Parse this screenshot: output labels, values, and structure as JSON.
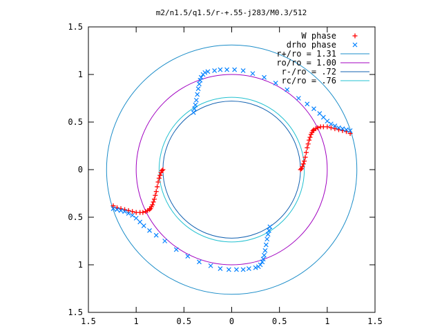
{
  "chart_data": {
    "type": "scatter",
    "title": "m2/n1.5/q1.5/r-+.55-j283/M0.3/512",
    "xlabel": "",
    "ylabel": "",
    "xlim": [
      -1.5,
      1.5
    ],
    "ylim": [
      -1.5,
      1.5
    ],
    "x_ticks": [
      -1.5,
      -1,
      -0.5,
      0,
      0.5,
      1,
      1.5
    ],
    "y_ticks": [
      -1.5,
      -1,
      -0.5,
      0,
      0.5,
      1,
      1.5
    ],
    "x_tick_labels": [
      "1.5",
      "1",
      "0.5",
      "0",
      "0.5",
      "1",
      "1.5"
    ],
    "y_tick_labels": [
      "1.5",
      "1",
      "0.5",
      "0",
      "0.5",
      "1",
      "1.5"
    ],
    "grid": false,
    "legend_position": "top-right",
    "colors": {
      "w_phase": "#ff0000",
      "drho_phase": "#0080ff",
      "r_plus": "#1a8cc8",
      "r_o": "#a000c0",
      "r_minus": "#1060b0",
      "r_c": "#20c0d0"
    },
    "legend": [
      {
        "label": "W phase",
        "marker": "+",
        "color": "#ff0000"
      },
      {
        "label": "drho phase",
        "marker": "x",
        "color": "#0080ff"
      },
      {
        "label": "r+/ro = 1.31",
        "marker": "line",
        "color": "#1a8cc8"
      },
      {
        "label": "ro/ro = 1.00",
        "marker": "line",
        "color": "#a000c0"
      },
      {
        "label": "r-/ro = .72",
        "marker": "line",
        "color": "#1060b0"
      },
      {
        "label": "rc/ro = .76",
        "marker": "line",
        "color": "#20c0d0"
      }
    ],
    "circles": [
      {
        "name": "r+/ro",
        "r": 1.31,
        "color": "#1a8cc8"
      },
      {
        "name": "ro/ro",
        "r": 1.0,
        "color": "#a000c0"
      },
      {
        "name": "r-/ro",
        "r": 0.72,
        "color": "#1060b0"
      },
      {
        "name": "rc/ro",
        "r": 0.76,
        "color": "#20c0d0"
      }
    ],
    "series": [
      {
        "name": "W phase",
        "marker": "+",
        "color": "#ff0000",
        "x": [
          0.72,
          0.73,
          0.74,
          0.75,
          0.76,
          0.77,
          0.78,
          0.79,
          0.8,
          0.81,
          0.82,
          0.83,
          0.84,
          0.85,
          0.86,
          0.88,
          0.9,
          0.93,
          0.96,
          1.0,
          1.04,
          1.08,
          1.12,
          1.16,
          1.2,
          1.24,
          -0.72,
          -0.73,
          -0.74,
          -0.75,
          -0.76,
          -0.77,
          -0.78,
          -0.79,
          -0.8,
          -0.81,
          -0.82,
          -0.83,
          -0.84,
          -0.85,
          -0.86,
          -0.88,
          -0.9,
          -0.93,
          -0.96,
          -1.0,
          -1.04,
          -1.08,
          -1.12,
          -1.16,
          -1.2,
          -1.24
        ],
        "y": [
          0.0,
          0.01,
          0.03,
          0.06,
          0.09,
          0.13,
          0.18,
          0.23,
          0.27,
          0.31,
          0.34,
          0.37,
          0.39,
          0.41,
          0.42,
          0.43,
          0.44,
          0.45,
          0.45,
          0.45,
          0.44,
          0.43,
          0.42,
          0.41,
          0.4,
          0.38,
          0.0,
          -0.01,
          -0.03,
          -0.06,
          -0.09,
          -0.13,
          -0.18,
          -0.23,
          -0.27,
          -0.31,
          -0.34,
          -0.37,
          -0.39,
          -0.41,
          -0.42,
          -0.43,
          -0.44,
          -0.45,
          -0.45,
          -0.45,
          -0.44,
          -0.43,
          -0.42,
          -0.41,
          -0.4,
          -0.38
        ]
      },
      {
        "name": "drho phase",
        "marker": "x",
        "color": "#0080ff",
        "x": [
          -0.4,
          -0.39,
          -0.38,
          -0.37,
          -0.36,
          -0.35,
          -0.34,
          -0.33,
          -0.32,
          -0.3,
          -0.28,
          -0.25,
          -0.18,
          -0.12,
          -0.05,
          0.03,
          0.12,
          0.22,
          0.34,
          0.46,
          0.58,
          0.7,
          0.79,
          0.86,
          0.92,
          0.96,
          1.0,
          1.04,
          1.08,
          1.12,
          1.16,
          1.2,
          1.24,
          0.4,
          0.39,
          0.38,
          0.37,
          0.36,
          0.35,
          0.34,
          0.33,
          0.32,
          0.3,
          0.28,
          0.25,
          0.18,
          0.12,
          0.05,
          -0.03,
          -0.12,
          -0.22,
          -0.34,
          -0.46,
          -0.58,
          -0.7,
          -0.79,
          -0.86,
          -0.92,
          -0.96,
          -1.0,
          -1.04,
          -1.08,
          -1.12,
          -1.16,
          -1.2,
          -1.24
        ],
        "y": [
          0.6,
          0.64,
          0.68,
          0.73,
          0.79,
          0.85,
          0.9,
          0.94,
          0.97,
          1.0,
          1.02,
          1.03,
          1.04,
          1.05,
          1.05,
          1.05,
          1.04,
          1.01,
          0.97,
          0.91,
          0.84,
          0.75,
          0.69,
          0.64,
          0.59,
          0.55,
          0.51,
          0.48,
          0.46,
          0.44,
          0.43,
          0.42,
          0.41,
          -0.6,
          -0.64,
          -0.68,
          -0.73,
          -0.79,
          -0.85,
          -0.9,
          -0.94,
          -0.97,
          -1.0,
          -1.02,
          -1.03,
          -1.04,
          -1.05,
          -1.05,
          -1.05,
          -1.04,
          -1.01,
          -0.97,
          -0.91,
          -0.84,
          -0.75,
          -0.69,
          -0.64,
          -0.59,
          -0.55,
          -0.51,
          -0.48,
          -0.46,
          -0.44,
          -0.43,
          -0.42,
          -0.41
        ]
      }
    ]
  }
}
